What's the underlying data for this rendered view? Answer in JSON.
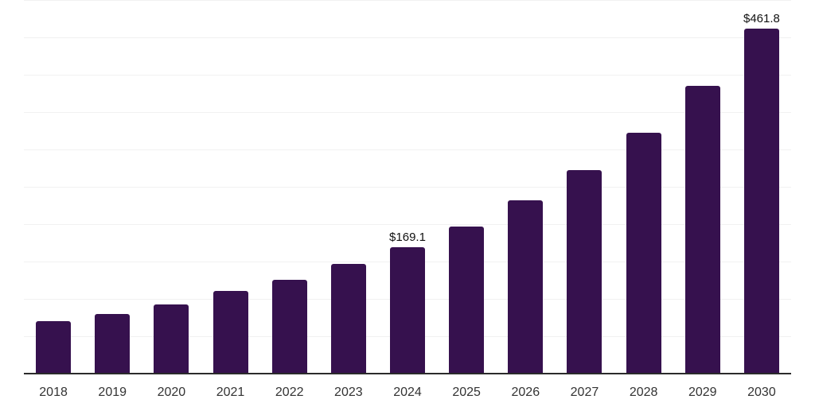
{
  "chart": {
    "background": "#ffffff",
    "bar_color": "#36114e",
    "axis_color": "#2b2b2b",
    "gridline_color": "#f1f1f1",
    "x_label_color": "#333333",
    "value_label_color": "#111111"
  },
  "chart_data": {
    "type": "bar",
    "title": "",
    "xlabel": "",
    "ylabel": "",
    "categories": [
      "2018",
      "2019",
      "2020",
      "2021",
      "2022",
      "2023",
      "2024",
      "2025",
      "2026",
      "2027",
      "2028",
      "2029",
      "2030"
    ],
    "values": [
      70.5,
      79.5,
      92.5,
      110.5,
      126.0,
      147.0,
      169.1,
      197.5,
      232.0,
      273.0,
      323.0,
      386.0,
      461.8
    ],
    "data_labels": {
      "2024": "$169.1",
      "2030": "$461.8"
    },
    "ylim": [
      0,
      500
    ],
    "gridline_step": 50,
    "grid": true,
    "legend": false,
    "y_axis_labels_visible": false,
    "x_axis_line_visible": true
  }
}
